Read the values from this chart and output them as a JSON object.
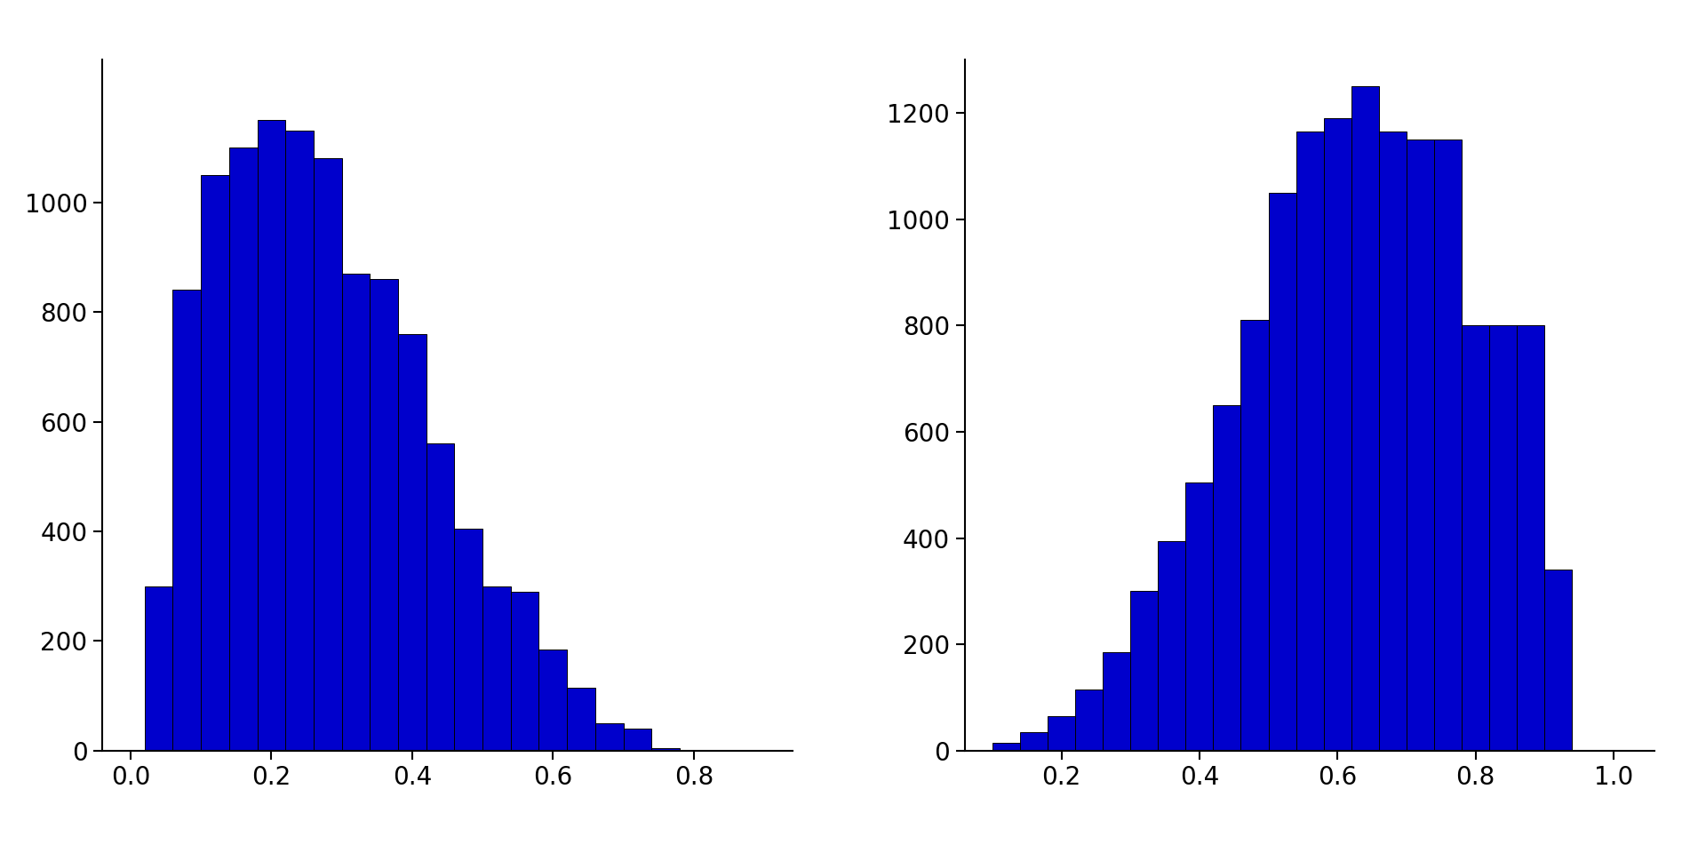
{
  "left_hist": {
    "bin_edges": [
      0.02,
      0.06,
      0.1,
      0.14,
      0.18,
      0.22,
      0.26,
      0.3,
      0.34,
      0.38,
      0.42,
      0.46,
      0.5,
      0.54,
      0.58,
      0.62,
      0.66,
      0.7,
      0.74,
      0.78,
      0.82,
      0.86,
      0.9
    ],
    "counts": [
      300,
      840,
      1050,
      1100,
      1150,
      1130,
      1080,
      870,
      860,
      760,
      560,
      405,
      300,
      290,
      185,
      115,
      50,
      40,
      5,
      0,
      0,
      0
    ],
    "xlim": [
      -0.04,
      0.94
    ],
    "ylim": [
      0,
      1260
    ],
    "xticks": [
      0.0,
      0.2,
      0.4,
      0.6,
      0.8
    ],
    "yticks": [
      0,
      200,
      400,
      600,
      800,
      1000
    ]
  },
  "right_hist": {
    "bin_edges": [
      0.1,
      0.14,
      0.18,
      0.22,
      0.26,
      0.3,
      0.34,
      0.38,
      0.42,
      0.46,
      0.5,
      0.54,
      0.58,
      0.62,
      0.66,
      0.7,
      0.74,
      0.78,
      0.82,
      0.86,
      0.9,
      0.94,
      0.98,
      1.02
    ],
    "counts": [
      15,
      35,
      65,
      115,
      185,
      300,
      395,
      505,
      650,
      810,
      1050,
      1165,
      1190,
      1250,
      1165,
      1150,
      1150,
      800,
      800,
      800,
      340,
      0,
      0
    ],
    "xlim": [
      0.06,
      1.06
    ],
    "ylim": [
      0,
      1300
    ],
    "xticks": [
      0.2,
      0.4,
      0.6,
      0.8,
      1.0
    ],
    "yticks": [
      0,
      200,
      400,
      600,
      800,
      1000,
      1200
    ]
  },
  "bar_color": "#0000CC",
  "bar_edgecolor": "#000000",
  "background_color": "#FFFFFF",
  "tick_fontsize": 20,
  "figsize": [
    19.2,
    9.6
  ]
}
